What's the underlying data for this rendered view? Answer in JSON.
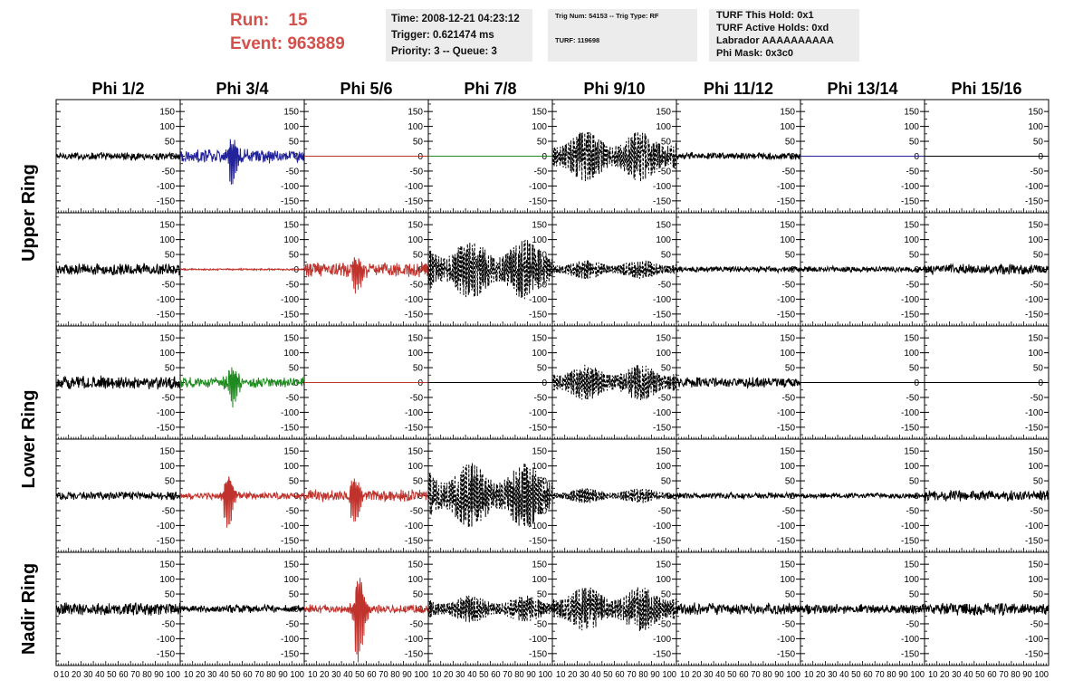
{
  "header": {
    "run_label": "Run:",
    "run_value": "15",
    "event_label": "Event:",
    "event_value": "963889",
    "time": "Time: 2008-12-21 04:23:12",
    "trigger": "Trigger: 0.621474 ms",
    "priority": "Priority: 3 -- Queue: 3",
    "trig_num": "Trig Num: 54153 -- Trig Type: RF",
    "turf": "TURF: 119698",
    "turf_this_hold": "TURF This Hold: 0x1",
    "turf_active_holds": "TURF Active Holds: 0xd",
    "labrador": "Labrador AAAAAAAAAA",
    "phi_mask": "Phi Mask: 0x3c0"
  },
  "colors": {
    "red": "#c0322c",
    "blue": "#22229a",
    "green": "#1f8a1f",
    "black": "#000000",
    "run_text": "#d4504a"
  },
  "chart_data": {
    "type": "line",
    "columns": [
      "Phi 1/2",
      "Phi 3/4",
      "Phi 5/6",
      "Phi 7/8",
      "Phi 9/10",
      "Phi 11/12",
      "Phi 13/14",
      "Phi 15/16"
    ],
    "row_groups": [
      {
        "label": "Upper Ring",
        "rows": [
          0,
          1
        ]
      },
      {
        "label": "Lower Ring",
        "rows": [
          2,
          3
        ]
      },
      {
        "label": "Nadir Ring",
        "rows": [
          4
        ]
      }
    ],
    "xlim": [
      0,
      100
    ],
    "ylim": [
      -190,
      190
    ],
    "x_ticks": [
      "0",
      "10",
      "20",
      "30",
      "40",
      "50",
      "60",
      "70",
      "80",
      "90",
      "100"
    ],
    "x_tick_text": "10 20 30 40 50 60 70 80 90 100",
    "y_ticks": [
      150,
      100,
      50,
      0,
      -50,
      -100,
      -150
    ],
    "y_tick_labels": [
      "150",
      "100",
      "50",
      "0",
      "-50",
      "-100",
      "-150"
    ],
    "panels": [
      [
        {
          "color": "black",
          "style": "noise",
          "amp": 13
        },
        {
          "color": "blue",
          "style": "pulse",
          "amp": 22,
          "pulse_x": 42,
          "pulse_amp": 95
        },
        {
          "color": "red",
          "style": "flat",
          "amp": 0
        },
        {
          "color": "green",
          "style": "flat",
          "amp": 0
        },
        {
          "color": "black",
          "style": "dashed",
          "amp": 85
        },
        {
          "color": "black",
          "style": "noise",
          "amp": 12
        },
        {
          "color": "blue",
          "style": "flat",
          "amp": 0
        },
        {
          "color": "black",
          "style": "flat",
          "amp": 0
        }
      ],
      [
        {
          "color": "black",
          "style": "noise",
          "amp": 20
        },
        {
          "color": "red",
          "style": "noise",
          "amp": 3
        },
        {
          "color": "red",
          "style": "pulse",
          "amp": 25,
          "pulse_x": 42,
          "pulse_amp": 80
        },
        {
          "color": "black",
          "style": "dashed",
          "amp": 100
        },
        {
          "color": "black",
          "style": "dashed",
          "amp": 32
        },
        {
          "color": "black",
          "style": "noise",
          "amp": 10
        },
        {
          "color": "black",
          "style": "noise",
          "amp": 10
        },
        {
          "color": "black",
          "style": "noise",
          "amp": 18
        }
      ],
      [
        {
          "color": "black",
          "style": "noise",
          "amp": 22
        },
        {
          "color": "green",
          "style": "pulse",
          "amp": 18,
          "pulse_x": 42,
          "pulse_amp": 70
        },
        {
          "color": "red",
          "style": "flat",
          "amp": 0
        },
        {
          "color": "black",
          "style": "flat",
          "amp": 0
        },
        {
          "color": "black",
          "style": "dashed",
          "amp": 60
        },
        {
          "color": "black",
          "style": "noise",
          "amp": 18
        },
        {
          "color": "black",
          "style": "flat",
          "amp": 0
        },
        {
          "color": "black",
          "style": "flat",
          "amp": 0
        }
      ],
      [
        {
          "color": "black",
          "style": "noise",
          "amp": 14
        },
        {
          "color": "red",
          "style": "pulse",
          "amp": 12,
          "pulse_x": 38,
          "pulse_amp": 115
        },
        {
          "color": "red",
          "style": "pulse",
          "amp": 20,
          "pulse_x": 40,
          "pulse_amp": 95
        },
        {
          "color": "black",
          "style": "dashed",
          "amp": 110
        },
        {
          "color": "black",
          "style": "dashed",
          "amp": 25
        },
        {
          "color": "black",
          "style": "noise",
          "amp": 10
        },
        {
          "color": "black",
          "style": "noise",
          "amp": 9
        },
        {
          "color": "black",
          "style": "noise",
          "amp": 18
        }
      ],
      [
        {
          "color": "black",
          "style": "noise",
          "amp": 22
        },
        {
          "color": "black",
          "style": "noise",
          "amp": 13
        },
        {
          "color": "red",
          "style": "pulse",
          "amp": 15,
          "pulse_x": 44,
          "pulse_amp": 185
        },
        {
          "color": "black",
          "style": "dashed",
          "amp": 45
        },
        {
          "color": "black",
          "style": "dashed",
          "amp": 75
        },
        {
          "color": "black",
          "style": "noise",
          "amp": 20
        },
        {
          "color": "black",
          "style": "noise",
          "amp": 17
        },
        {
          "color": "black",
          "style": "noise",
          "amp": 22
        }
      ]
    ]
  }
}
